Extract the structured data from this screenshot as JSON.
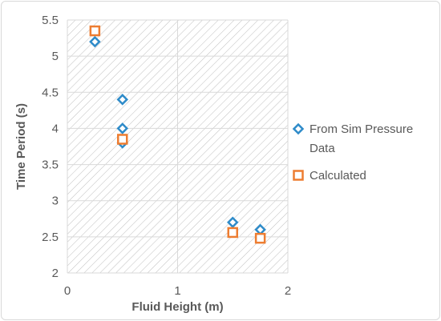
{
  "chart_data": {
    "type": "scatter",
    "xlabel": "Fluid Height (m)",
    "ylabel": "Time Period (s)",
    "xlim": [
      0,
      2
    ],
    "ylim": [
      2,
      5.5
    ],
    "x_ticks": [
      "0",
      "1",
      "2"
    ],
    "y_ticks": [
      "2",
      "2.5",
      "3",
      "3.5",
      "4",
      "4.5",
      "5",
      "5.5"
    ],
    "grid": "major gridlines on, hatched plot area",
    "legend_position": "right",
    "series": [
      {
        "name": "From Sim Pressure Data",
        "marker": "diamond",
        "color": "#2e8bc9",
        "points": [
          {
            "x": 0.25,
            "y": 5.2
          },
          {
            "x": 0.5,
            "y": 4.4
          },
          {
            "x": 0.5,
            "y": 4.0
          },
          {
            "x": 0.5,
            "y": 3.8
          },
          {
            "x": 1.5,
            "y": 2.7
          },
          {
            "x": 1.75,
            "y": 2.6
          }
        ]
      },
      {
        "name": "Calculated",
        "marker": "square",
        "color": "#ed7d31",
        "points": [
          {
            "x": 0.25,
            "y": 5.35
          },
          {
            "x": 0.5,
            "y": 3.85
          },
          {
            "x": 1.5,
            "y": 2.56
          },
          {
            "x": 1.75,
            "y": 2.48
          }
        ]
      }
    ]
  }
}
